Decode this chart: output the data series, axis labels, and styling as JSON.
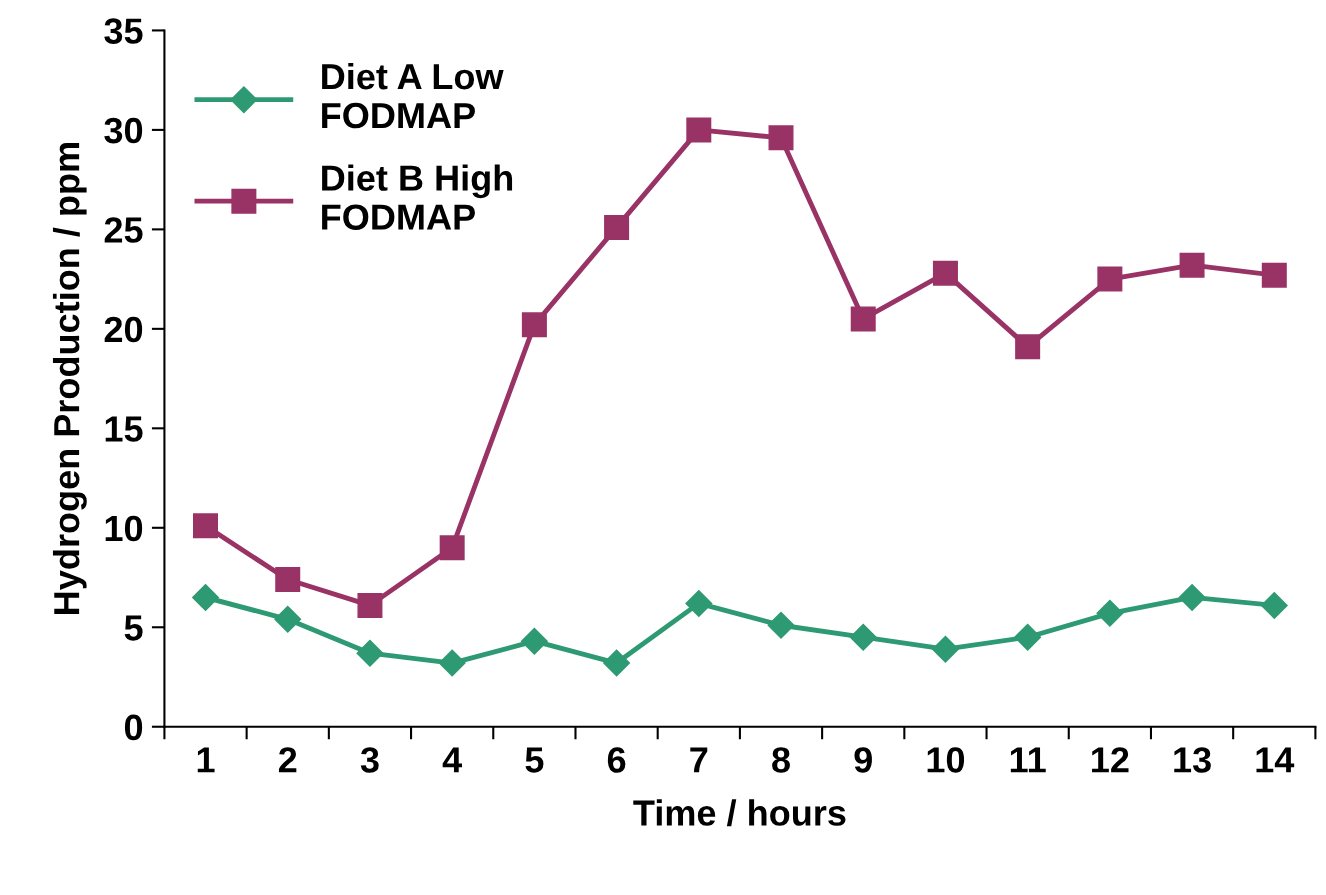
{
  "chart_data": {
    "type": "line",
    "xlabel": "Time / hours",
    "ylabel": "Hydrogen Production / ppm",
    "categories": [
      "1",
      "2",
      "3",
      "4",
      "5",
      "6",
      "7",
      "8",
      "9",
      "10",
      "11",
      "12",
      "13",
      "14"
    ],
    "ylim": [
      0,
      35
    ],
    "yticks": [
      0,
      5,
      10,
      15,
      20,
      25,
      30,
      35
    ],
    "grid": false,
    "legend": "top left",
    "series": [
      {
        "name": "Diet A Low\nFODMAP",
        "color": "#2e9a74",
        "marker": "diamond",
        "values": [
          6.5,
          5.4,
          3.7,
          3.2,
          4.3,
          3.2,
          6.2,
          5.1,
          4.5,
          3.9,
          4.5,
          5.7,
          6.5,
          6.1
        ]
      },
      {
        "name": "Diet B High\nFODMAP",
        "color": "#993366",
        "marker": "square",
        "values": [
          10.1,
          7.4,
          6.1,
          9.0,
          20.2,
          25.1,
          30.0,
          29.6,
          20.5,
          22.8,
          19.1,
          22.5,
          23.2,
          22.7
        ]
      }
    ]
  }
}
